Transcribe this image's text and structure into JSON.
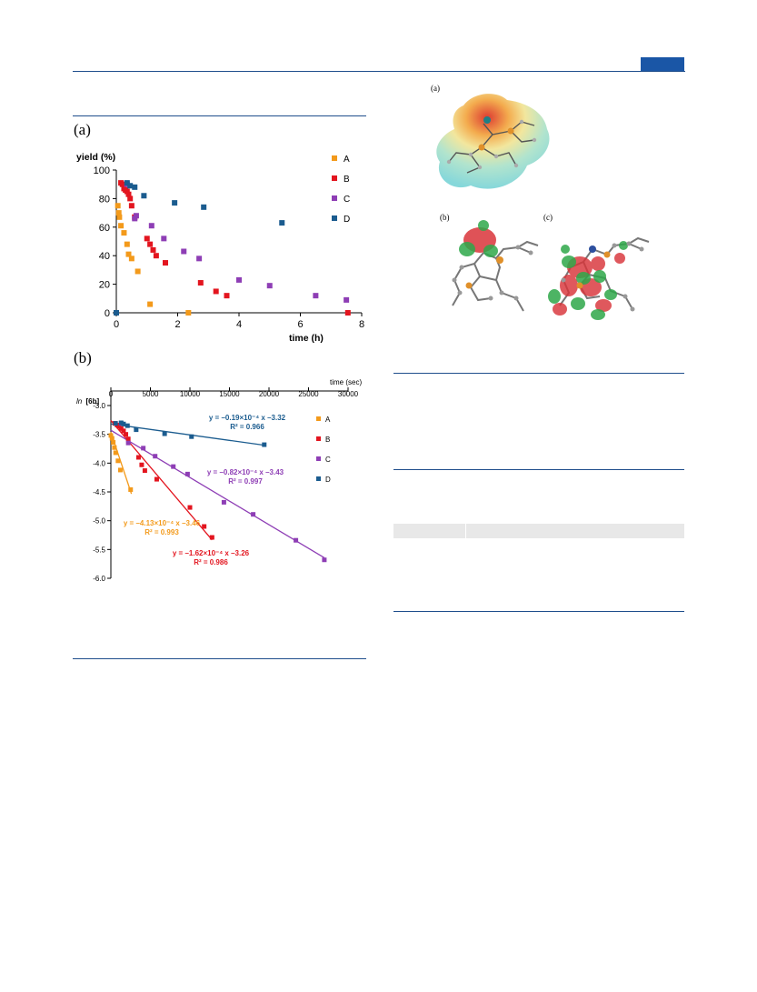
{
  "panels": {
    "a": "(a)",
    "b": "(b)",
    "mol_a": "(a)",
    "mol_b": "(b)",
    "mol_c": "(c)"
  },
  "colors": {
    "A": "#f39a1b",
    "B": "#e3151f",
    "C": "#8e3eb5",
    "D": "#1b5c8f",
    "header": "#1a56a6"
  },
  "chart_data": [
    {
      "type": "scatter",
      "title": "",
      "xlabel": "time (h)",
      "ylabel": "yield (%)",
      "xlim": [
        0,
        8
      ],
      "ylim": [
        0,
        100
      ],
      "xticks": [
        "0",
        "2",
        "4",
        "6",
        "8"
      ],
      "yticks": [
        "0",
        "20",
        "40",
        "60",
        "80",
        "100"
      ],
      "legend_position": "right",
      "series": [
        {
          "name": "A",
          "color": "#f39a1b",
          "points": [
            [
              0,
              0
            ],
            [
              0.05,
              75
            ],
            [
              0.08,
              70
            ],
            [
              0.1,
              67
            ],
            [
              0.15,
              61
            ],
            [
              0.25,
              56
            ],
            [
              0.35,
              48
            ],
            [
              0.4,
              41
            ],
            [
              0.5,
              38
            ],
            [
              0.7,
              29
            ],
            [
              1.1,
              6
            ],
            [
              2.35,
              0
            ]
          ]
        },
        {
          "name": "B",
          "color": "#e3151f",
          "points": [
            [
              0,
              0
            ],
            [
              0.15,
              91
            ],
            [
              0.2,
              90
            ],
            [
              0.25,
              87
            ],
            [
              0.3,
              86
            ],
            [
              0.35,
              85
            ],
            [
              0.4,
              83
            ],
            [
              0.45,
              80
            ],
            [
              0.5,
              75
            ],
            [
              0.6,
              67
            ],
            [
              1.0,
              52
            ],
            [
              1.1,
              48
            ],
            [
              1.2,
              44
            ],
            [
              1.3,
              40
            ],
            [
              1.6,
              35
            ],
            [
              2.75,
              21
            ],
            [
              3.25,
              15
            ],
            [
              3.6,
              12
            ],
            [
              7.55,
              0
            ]
          ]
        },
        {
          "name": "C",
          "color": "#8e3eb5",
          "points": [
            [
              0,
              0
            ],
            [
              0.35,
              90
            ],
            [
              0.6,
              66
            ],
            [
              0.65,
              68
            ],
            [
              1.15,
              61
            ],
            [
              1.55,
              52
            ],
            [
              2.2,
              43
            ],
            [
              2.7,
              38
            ],
            [
              4.0,
              23
            ],
            [
              5.0,
              19
            ],
            [
              6.5,
              12
            ],
            [
              7.5,
              9
            ]
          ]
        },
        {
          "name": "D",
          "color": "#1b5c8f",
          "points": [
            [
              0,
              0
            ],
            [
              0.35,
              91
            ],
            [
              0.45,
              89
            ],
            [
              0.6,
              88
            ],
            [
              0.9,
              82
            ],
            [
              1.9,
              77
            ],
            [
              2.85,
              74
            ],
            [
              5.4,
              63
            ]
          ]
        }
      ]
    },
    {
      "type": "scatter",
      "title": "",
      "xlabel": "time (sec)",
      "ylabel": "ln [6b]",
      "ylabel_prefix": "ln",
      "ylabel_suffix": "[6b]",
      "xlim": [
        0,
        30000
      ],
      "ylim": [
        -6.0,
        -3.0
      ],
      "xticks": [
        "0",
        "5000",
        "10000",
        "15000",
        "20000",
        "25000",
        "30000"
      ],
      "yticks": [
        "-3.0",
        "-3.5",
        "-4.0",
        "-4.5",
        "-5.0",
        "-5.5",
        "-6.0"
      ],
      "legend_position": "right",
      "series": [
        {
          "name": "A",
          "color": "#f39a1b",
          "eq_lines": [
            "y = –4.13×10⁻⁴ x –3.46",
            "R² = 0.993"
          ],
          "fit": {
            "slope": -0.000413,
            "intercept": -3.46,
            "xmax": 2600
          },
          "points": [
            [
              0,
              -3.52
            ],
            [
              150,
              -3.57
            ],
            [
              300,
              -3.64
            ],
            [
              450,
              -3.73
            ],
            [
              600,
              -3.82
            ],
            [
              900,
              -3.96
            ],
            [
              1200,
              -4.12
            ],
            [
              2500,
              -4.46
            ]
          ]
        },
        {
          "name": "B",
          "color": "#e3151f",
          "eq_lines": [
            "y = –1.62×10⁻⁴ x –3.26",
            "R² = 0.986"
          ],
          "fit": {
            "slope": -0.000162,
            "intercept": -3.26,
            "xmax": 12800
          },
          "points": [
            [
              500,
              -3.31
            ],
            [
              800,
              -3.34
            ],
            [
              1000,
              -3.36
            ],
            [
              1300,
              -3.4
            ],
            [
              1600,
              -3.44
            ],
            [
              1900,
              -3.5
            ],
            [
              2200,
              -3.58
            ],
            [
              3500,
              -3.9
            ],
            [
              3900,
              -4.03
            ],
            [
              4300,
              -4.13
            ],
            [
              5800,
              -4.28
            ],
            [
              10000,
              -4.77
            ],
            [
              11800,
              -5.1
            ],
            [
              12800,
              -5.29
            ]
          ]
        },
        {
          "name": "C",
          "color": "#8e3eb5",
          "eq_lines": [
            "y = –0.82×10⁻⁴ x –3.43",
            "R² = 0.997"
          ],
          "fit": {
            "slope": -8.2e-05,
            "intercept": -3.43,
            "xmax": 27000
          },
          "points": [
            [
              1300,
              -3.31
            ],
            [
              2200,
              -3.65
            ],
            [
              4100,
              -3.74
            ],
            [
              5600,
              -3.88
            ],
            [
              7900,
              -4.06
            ],
            [
              9700,
              -4.19
            ],
            [
              14300,
              -4.68
            ],
            [
              18000,
              -4.89
            ],
            [
              23400,
              -5.34
            ],
            [
              27000,
              -5.68
            ]
          ]
        },
        {
          "name": "D",
          "color": "#1b5c8f",
          "eq_lines": [
            "y = –0.19×10⁻⁴ x –3.32",
            "R² = 0.966"
          ],
          "fit": {
            "slope": -1.9e-05,
            "intercept": -3.32,
            "xmax": 19400
          },
          "points": [
            [
              600,
              -3.31
            ],
            [
              1300,
              -3.3
            ],
            [
              1600,
              -3.32
            ],
            [
              2100,
              -3.35
            ],
            [
              3200,
              -3.42
            ],
            [
              6800,
              -3.49
            ],
            [
              10200,
              -3.54
            ],
            [
              19400,
              -3.68
            ]
          ]
        }
      ]
    }
  ]
}
